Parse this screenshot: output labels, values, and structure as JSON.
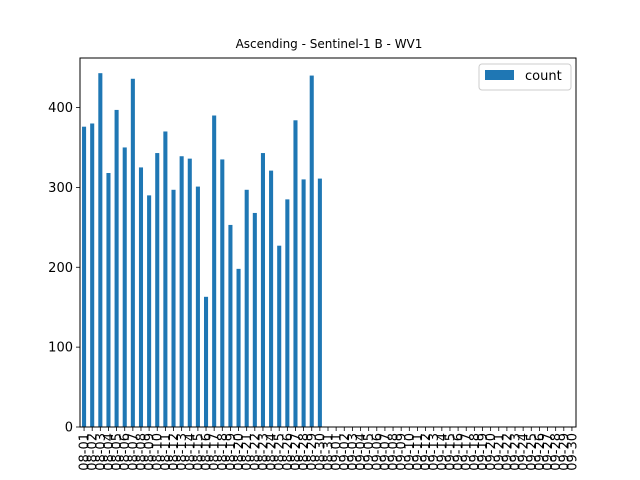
{
  "chart_data": {
    "type": "bar",
    "title": "Ascending - Sentinel-1 B - WV1",
    "xlabel": "",
    "ylabel": "",
    "ylim": [
      0,
      462
    ],
    "y_ticks": [
      0,
      100,
      200,
      300,
      400
    ],
    "legend_position": "top-right",
    "grid": false,
    "bar_color": "#1f77b4",
    "categories": [
      "08-01",
      "08-02",
      "08-03",
      "08-04",
      "08-05",
      "08-06",
      "08-07",
      "08-08",
      "08-09",
      "08-10",
      "08-11",
      "08-12",
      "08-13",
      "08-14",
      "08-15",
      "08-16",
      "08-17",
      "08-18",
      "08-19",
      "08-20",
      "08-21",
      "08-22",
      "08-23",
      "08-24",
      "08-25",
      "08-26",
      "08-27",
      "08-28",
      "08-29",
      "08-30",
      "08-31",
      "09-01",
      "09-02",
      "09-03",
      "09-04",
      "09-05",
      "09-06",
      "09-07",
      "09-08",
      "09-09",
      "09-10",
      "09-11",
      "09-12",
      "09-13",
      "09-14",
      "09-15",
      "09-16",
      "09-17",
      "09-18",
      "09-19",
      "09-20",
      "09-21",
      "09-22",
      "09-23",
      "09-24",
      "09-25",
      "09-26",
      "09-27",
      "09-28",
      "09-29",
      "09-30"
    ],
    "series": [
      {
        "name": "count",
        "values": [
          376,
          380,
          443,
          318,
          397,
          350,
          436,
          325,
          290,
          343,
          370,
          297,
          339,
          336,
          301,
          163,
          390,
          335,
          253,
          198,
          297,
          268,
          343,
          321,
          227,
          285,
          384,
          310,
          440,
          311,
          0,
          0,
          0,
          0,
          0,
          0,
          0,
          0,
          0,
          0,
          0,
          0,
          0,
          0,
          0,
          0,
          0,
          0,
          0,
          0,
          0,
          0,
          0,
          0,
          0,
          0,
          0,
          0,
          0,
          0,
          0
        ]
      }
    ]
  }
}
